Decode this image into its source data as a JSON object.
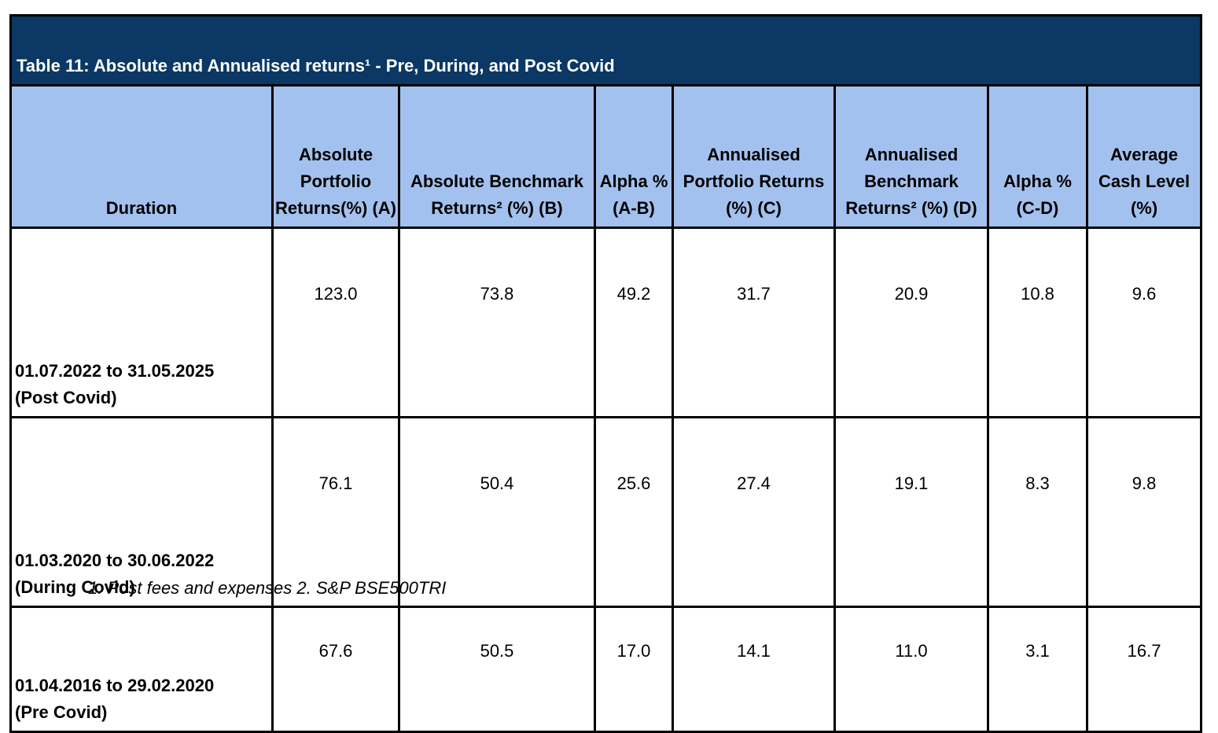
{
  "table": {
    "title": "Table 11: Absolute and Annualised returns¹ - Pre, During, and Post Covid",
    "columns": [
      {
        "label": "Duration"
      },
      {
        "label": "Absolute Portfolio Returns(%) (A)"
      },
      {
        "label": "Absolute Benchmark Returns² (%) (B)"
      },
      {
        "label": "Alpha % (A-B)"
      },
      {
        "label": "Annualised Portfolio Returns (%) (C)"
      },
      {
        "label": "Annualised Benchmark Returns² (%) (D)"
      },
      {
        "label": "Alpha % (C-D)"
      },
      {
        "label": "Average Cash Level (%)"
      }
    ],
    "rows": [
      {
        "duration": "01.07.2022 to 31.05.2025",
        "period": "(Post Covid)",
        "abs_portfolio": "123.0",
        "abs_benchmark": "73.8",
        "alpha_ab": "49.2",
        "ann_portfolio": "31.7",
        "ann_benchmark": "20.9",
        "alpha_cd": "10.8",
        "cash": "9.6"
      },
      {
        "duration": "01.03.2020 to 30.06.2022",
        "period": "(During Covid)",
        "abs_portfolio": "76.1",
        "abs_benchmark": "50.4",
        "alpha_ab": "25.6",
        "ann_portfolio": "27.4",
        "ann_benchmark": "19.1",
        "alpha_cd": "8.3",
        "cash": "9.8"
      },
      {
        "duration": "01.04.2016 to 29.02.2020",
        "period": "(Pre Covid)",
        "abs_portfolio": "67.6",
        "abs_benchmark": "50.5",
        "alpha_ab": "17.0",
        "ann_portfolio": "14.1",
        "ann_benchmark": "11.0",
        "alpha_cd": "3.1",
        "cash": "16.7"
      }
    ]
  },
  "footnote": "1. Post fees and expenses 2. S&P BSE500TRI",
  "colors": {
    "title_bg": "#0b3864",
    "header_bg": "#a3c1ee",
    "border": "#000000"
  }
}
